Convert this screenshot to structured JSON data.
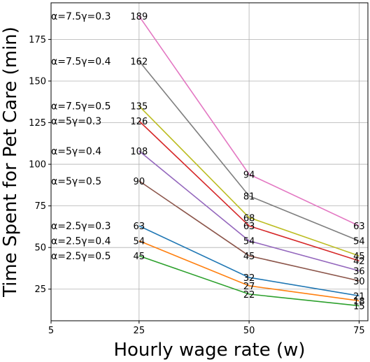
{
  "chart_data": {
    "type": "line",
    "xlabel": "Hourly wage rate (w)",
    "ylabel": "Time Spent for Pet Care (min)",
    "x": [
      25,
      50,
      75
    ],
    "xticks": [
      5,
      25,
      50,
      75
    ],
    "yticks": [
      25,
      50,
      75,
      100,
      125,
      150,
      175
    ],
    "xlim": [
      5,
      77
    ],
    "ylim": [
      6,
      197
    ],
    "grid": true,
    "series": [
      {
        "name": "α=2.5γ=0.3",
        "values": [
          63,
          32,
          21
        ],
        "color": "#1f77b4"
      },
      {
        "name": "α=2.5γ=0.4",
        "values": [
          54,
          27,
          18
        ],
        "color": "#ff7f0e"
      },
      {
        "name": "α=2.5γ=0.5",
        "values": [
          45,
          22,
          15
        ],
        "color": "#2ca02c"
      },
      {
        "name": "α=5γ=0.3",
        "values": [
          126,
          63,
          42
        ],
        "color": "#d62728"
      },
      {
        "name": "α=5γ=0.4",
        "values": [
          108,
          54,
          36
        ],
        "color": "#9467bd"
      },
      {
        "name": "α=5γ=0.5",
        "values": [
          90,
          45,
          30
        ],
        "color": "#8c564b"
      },
      {
        "name": "α=7.5γ=0.3",
        "values": [
          189,
          94,
          63
        ],
        "color": "#e377c2"
      },
      {
        "name": "α=7.5γ=0.4",
        "values": [
          162,
          81,
          54
        ],
        "color": "#7f7f7f"
      },
      {
        "name": "α=7.5γ=0.5",
        "values": [
          135,
          68,
          45
        ],
        "color": "#bcbd22"
      }
    ]
  }
}
